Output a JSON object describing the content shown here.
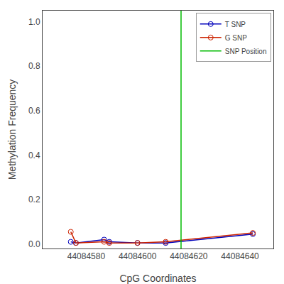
{
  "chart_data": {
    "type": "line",
    "title": "",
    "xlabel": "CpG Coordinates",
    "ylabel": "Methylation Frequency",
    "xlim": [
      44084563,
      44084653
    ],
    "ylim": [
      -0.02,
      1.05
    ],
    "xticks": [
      44084580,
      44084600,
      44084620,
      44084640
    ],
    "yticks": [
      {
        "value": 0.0,
        "label": "0.0"
      },
      0.2,
      0.4,
      0.6,
      0.8,
      {
        "value": 1.0,
        "label": "1.0"
      }
    ],
    "grid": false,
    "legend": "upper right",
    "marker": "open circle",
    "series": [
      {
        "name": "T SNP",
        "color": "#0000bb",
        "x": [
          44084574,
          44084576,
          44084587,
          44084589,
          44084600,
          44084611,
          44084645
        ],
        "values": [
          0.01,
          0.005,
          0.02,
          0.01,
          0.005,
          0.005,
          0.045
        ]
      },
      {
        "name": "G SNP",
        "color": "#cc2200",
        "x": [
          44084574,
          44084576,
          44084587,
          44084589,
          44084600,
          44084611,
          44084645
        ],
        "values": [
          0.055,
          0.005,
          0.01,
          0.005,
          0.005,
          0.01,
          0.05
        ]
      }
    ],
    "vlines": [
      {
        "name": "SNP Position",
        "color": "#00bb00",
        "x": 44084617
      }
    ]
  }
}
